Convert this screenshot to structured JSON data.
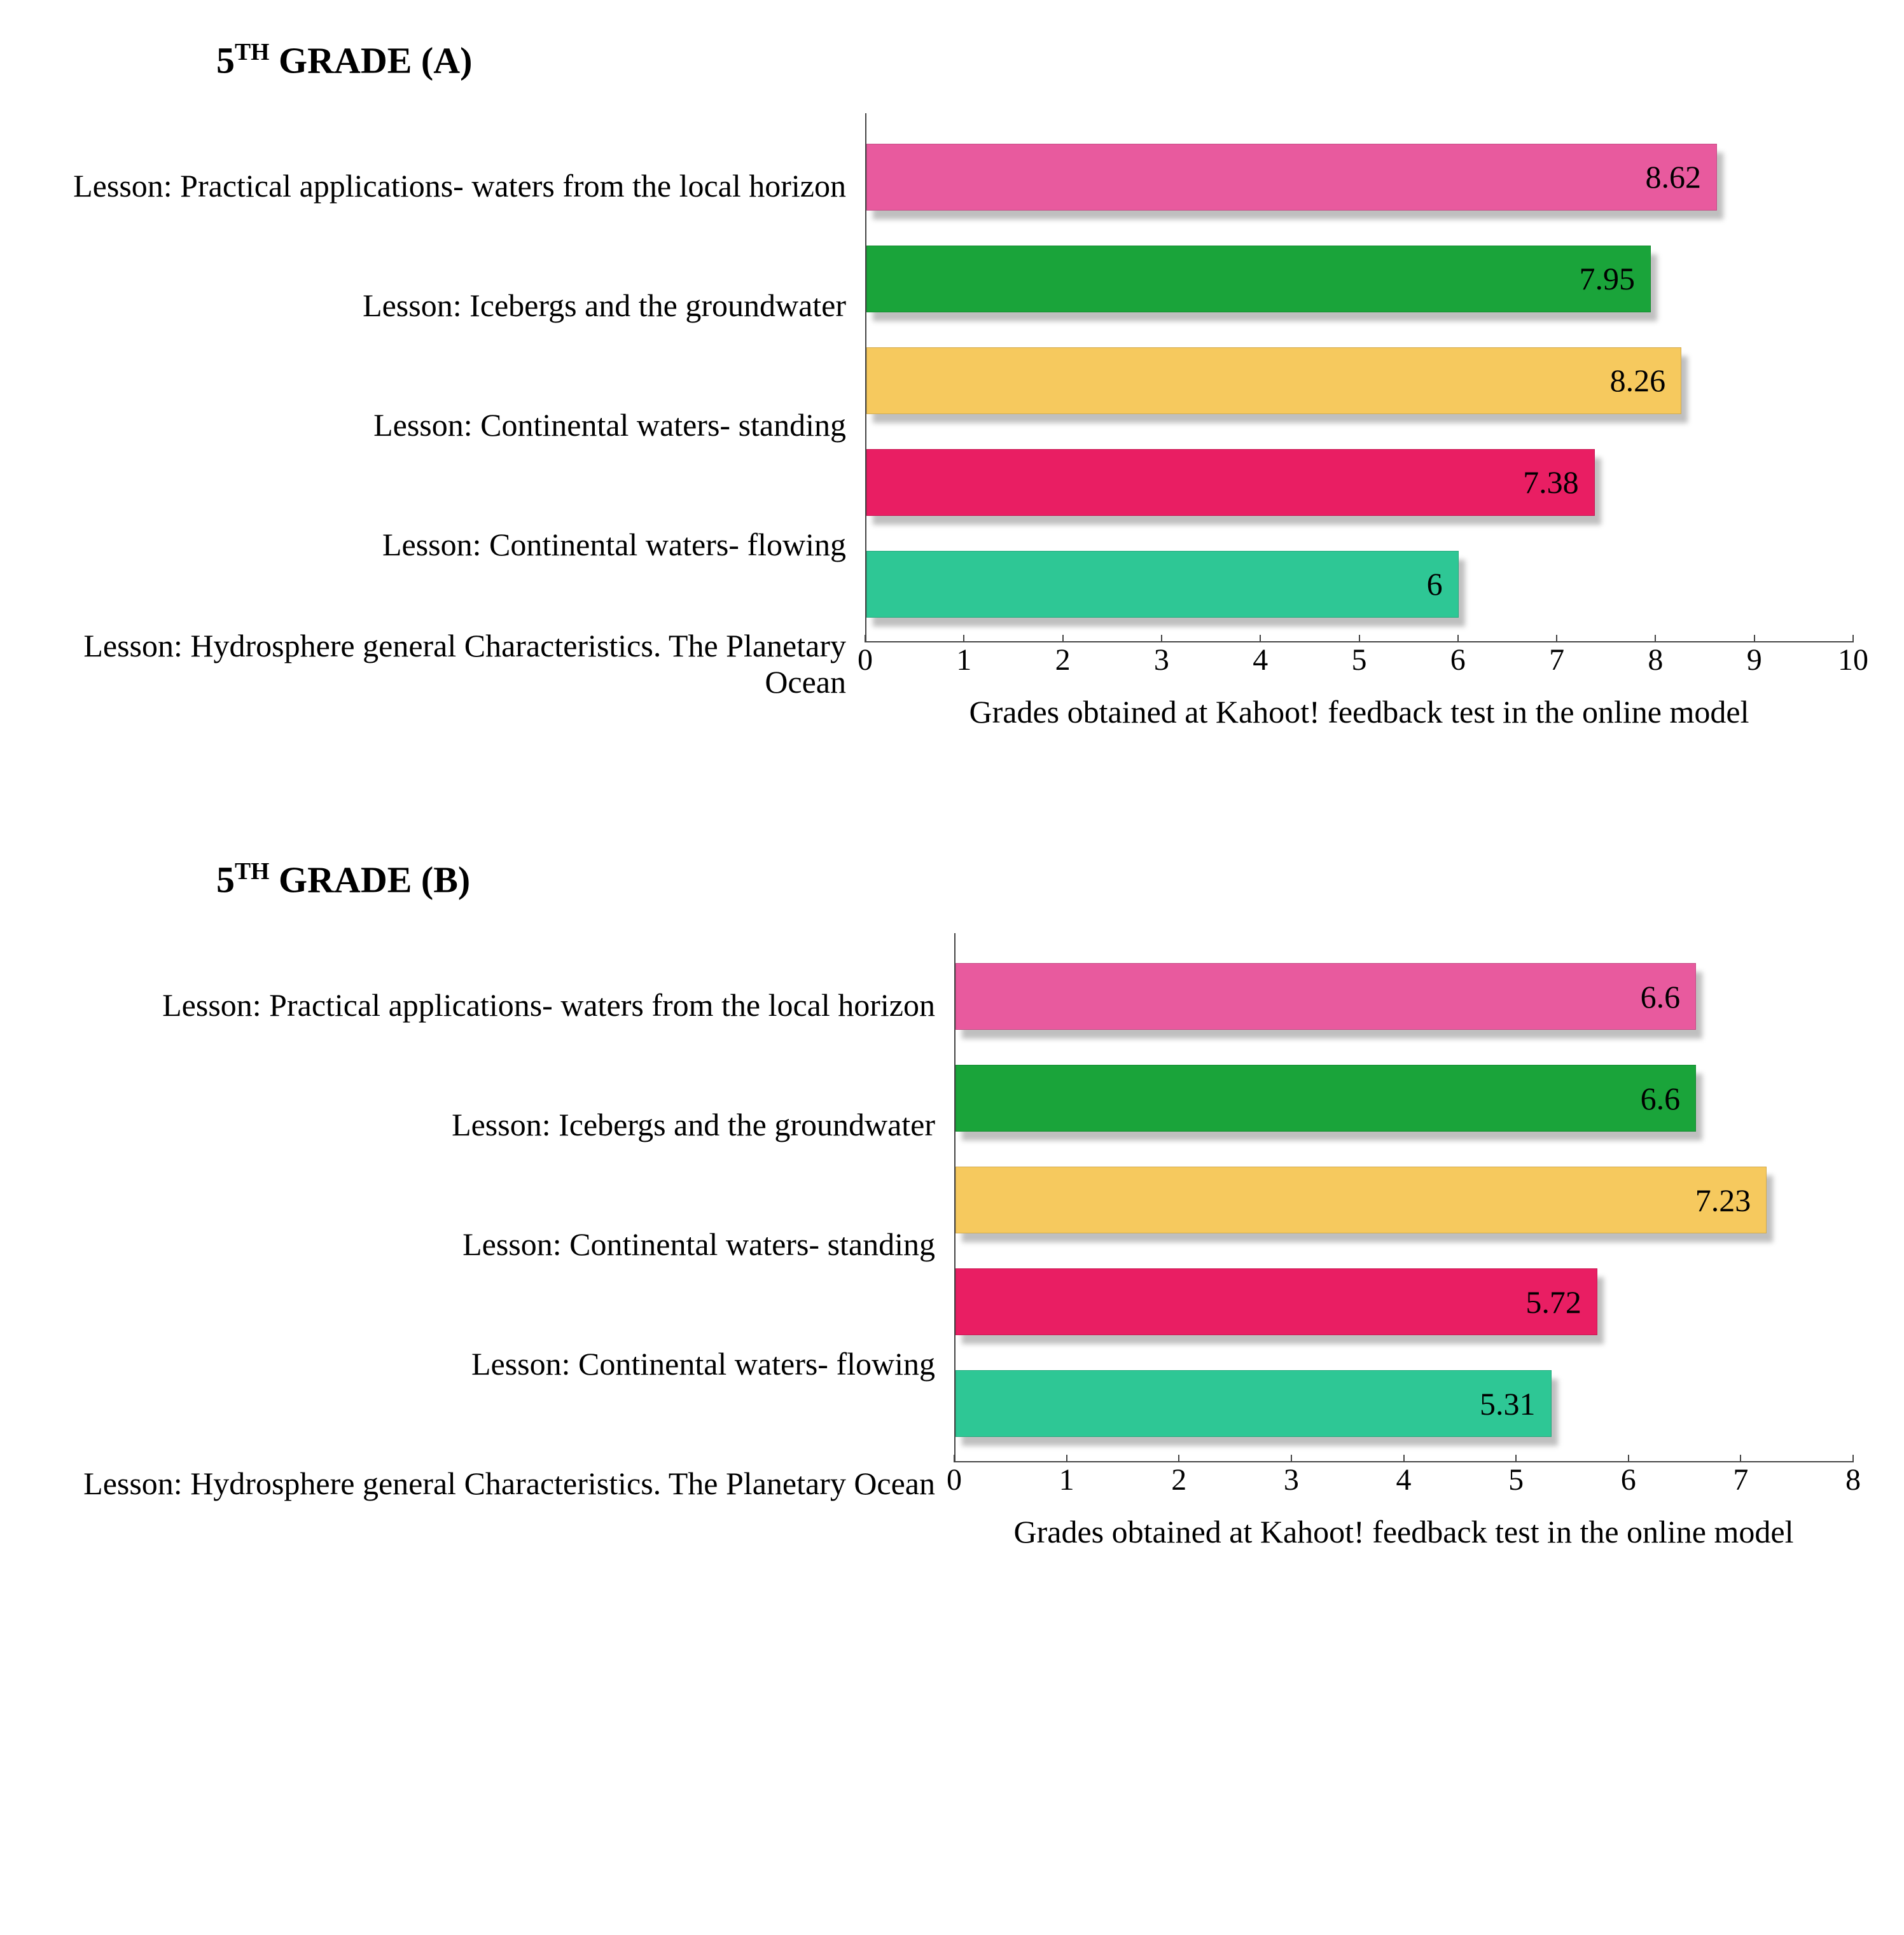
{
  "charts": [
    {
      "title_prefix": "5",
      "title_sup": "TH",
      "title_suffix": " GRADE (A)",
      "x_label": "Grades obtained at Kahoot! feedback test in the online model",
      "x_max": 10,
      "x_tick_step": 1,
      "label_col_width": 1310,
      "bar_colors": [
        "#e85a9e",
        "#1aa43a",
        "#f6c95e",
        "#e91e63",
        "#2ec795"
      ],
      "background_color": "#ffffff",
      "axis_color": "#444444",
      "value_fontsize": 50,
      "title_fontsize": 58,
      "label_fontsize": 50,
      "tick_fontsize": 48,
      "labels": [
        "Lesson: Practical applications- waters from the local horizon",
        "Lesson: Icebergs and the groundwater",
        "Lesson: Continental waters- standing",
        "Lesson: Continental waters- flowing",
        "Lesson: Hydrosphere general Characteristics. The Planetary Ocean"
      ],
      "values": [
        8.62,
        7.95,
        8.26,
        7.38,
        6
      ],
      "value_display": [
        "8.62",
        "7.95",
        "8.26",
        "7.38",
        "6"
      ]
    },
    {
      "title_prefix": "5",
      "title_sup": "TH",
      "title_suffix": " GRADE (B)",
      "x_label": "Grades obtained at Kahoot! feedback test in the online model",
      "x_max": 8,
      "x_tick_step": 1,
      "label_col_width": 1450,
      "bar_colors": [
        "#e85a9e",
        "#1aa43a",
        "#f6c95e",
        "#e91e63",
        "#2ec795"
      ],
      "background_color": "#ffffff",
      "axis_color": "#444444",
      "value_fontsize": 50,
      "title_fontsize": 58,
      "label_fontsize": 50,
      "tick_fontsize": 48,
      "labels": [
        "Lesson: Practical applications- waters from the local horizon",
        "Lesson: Icebergs and the groundwater",
        "Lesson: Continental waters- standing",
        "Lesson: Continental waters- flowing",
        "Lesson: Hydrosphere general Characteristics. The Planetary Ocean"
      ],
      "values": [
        6.6,
        6.6,
        7.23,
        5.72,
        5.31
      ],
      "value_display": [
        "6.6",
        "6.6",
        "7.23",
        "5.72",
        "5.31"
      ]
    }
  ]
}
